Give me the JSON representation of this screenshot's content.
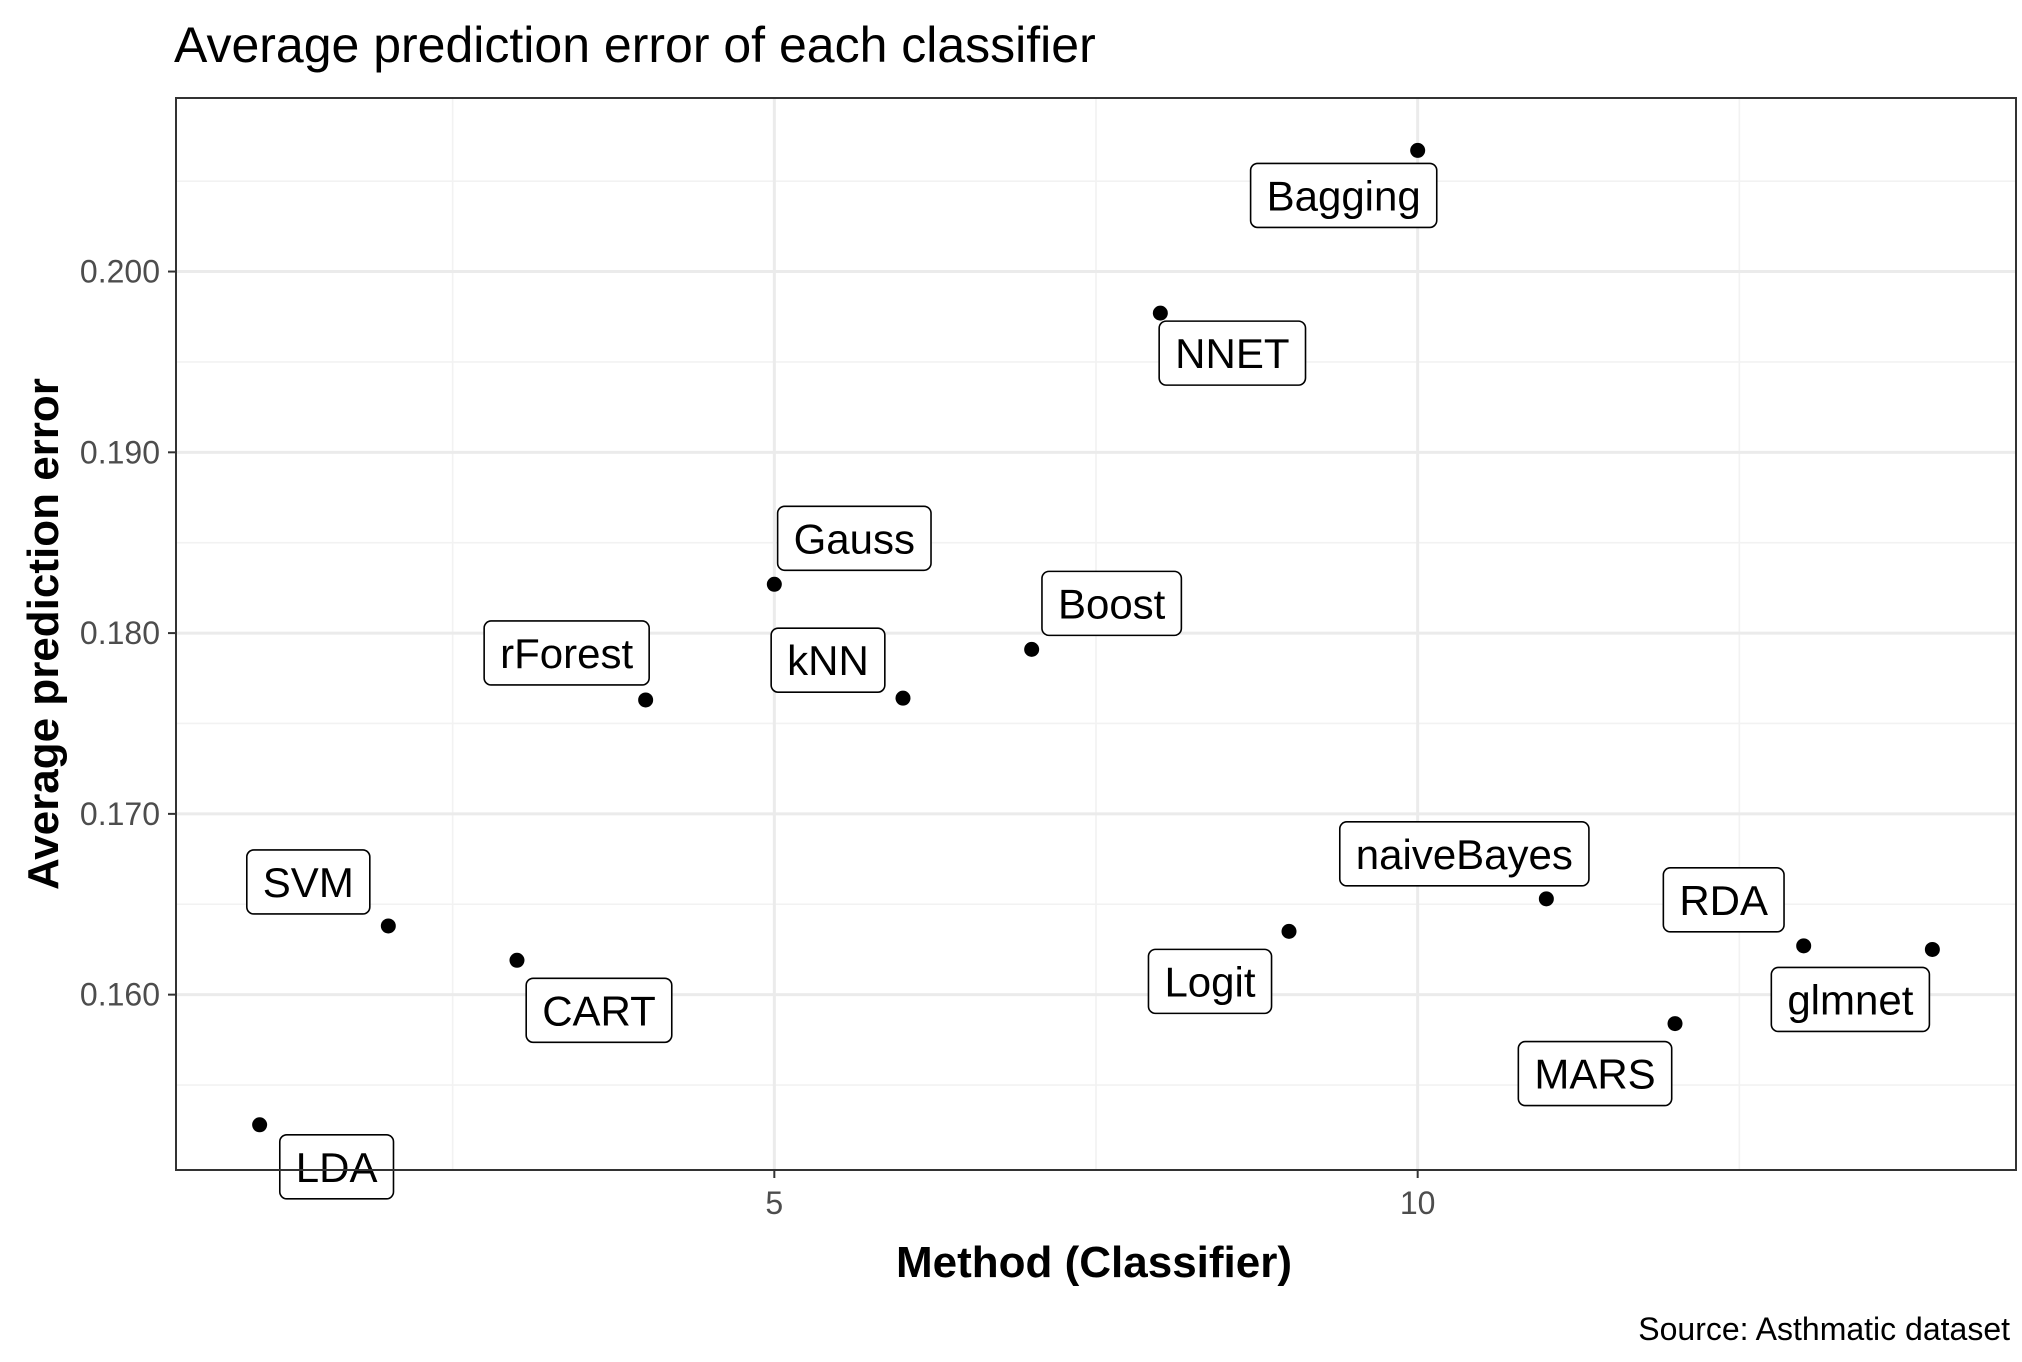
{
  "chart_data": {
    "type": "scatter",
    "title": "Average prediction error of each classifier",
    "xlabel": "Method (Classifier)",
    "ylabel": "Average prediction error",
    "caption": "Source: Asthmatic dataset",
    "xlim": [
      0.35,
      14.65
    ],
    "ylim": [
      0.1503,
      0.2096
    ],
    "x_ticks": [
      5,
      10
    ],
    "y_ticks": [
      0.16,
      0.17,
      0.18,
      0.19,
      0.2
    ],
    "x_tick_labels": [
      "5",
      "10"
    ],
    "y_tick_labels": [
      "0.160",
      "0.170",
      "0.180",
      "0.190",
      "0.200"
    ],
    "x_minor_grid": [
      2.5,
      7.5,
      12.5
    ],
    "y_minor_grid": [
      0.155,
      0.165,
      0.175,
      0.185,
      0.195,
      0.205
    ],
    "grid": true,
    "legend": "none",
    "points": [
      {
        "label": "LDA",
        "x": 1,
        "y": 0.1528
      },
      {
        "label": "SVM",
        "x": 2,
        "y": 0.1638
      },
      {
        "label": "CART",
        "x": 3,
        "y": 0.1619
      },
      {
        "label": "rForest",
        "x": 4,
        "y": 0.1763
      },
      {
        "label": "Gauss",
        "x": 5,
        "y": 0.1827
      },
      {
        "label": "kNN",
        "x": 6,
        "y": 0.1764
      },
      {
        "label": "Boost",
        "x": 7,
        "y": 0.1791
      },
      {
        "label": "NNET",
        "x": 8,
        "y": 0.1977
      },
      {
        "label": "Logit",
        "x": 9,
        "y": 0.1635
      },
      {
        "label": "Bagging",
        "x": 10,
        "y": 0.2067
      },
      {
        "label": "naiveBayes",
        "x": 11,
        "y": 0.1653
      },
      {
        "label": "MARS",
        "x": 12,
        "y": 0.1584
      },
      {
        "label": "RDA",
        "x": 13,
        "y": 0.1627
      },
      {
        "label": "glmnet",
        "x": 14,
        "y": 0.1625
      }
    ],
    "colors": {
      "point": "#000000",
      "panel_border": "#333333",
      "major_grid": "#ebebeb",
      "minor_grid": "#f2f2f2",
      "label_fill": "#ffffff",
      "label_border": "#000000"
    }
  }
}
